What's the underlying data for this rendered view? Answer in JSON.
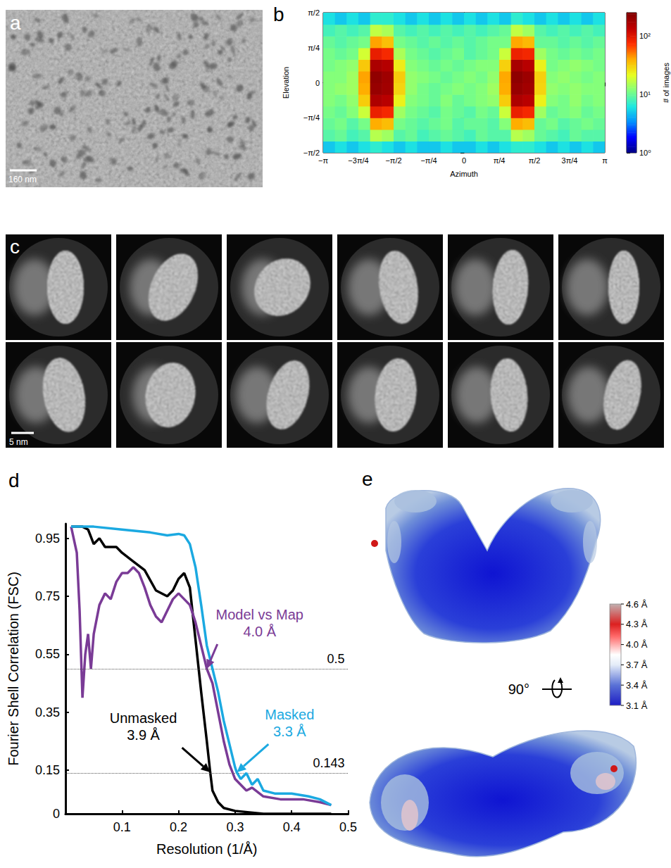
{
  "micrograph": {
    "panel_label": "a",
    "scale_bar": "160 nm"
  },
  "class_averages": {
    "panel_label": "c",
    "count": 12,
    "scale_bar": "5 nm"
  },
  "chart_data": [
    {
      "panel_label": "b",
      "type": "heatmap",
      "x_label": "Azimuth",
      "y_label": "Elevation",
      "xlim": [
        -3.14159,
        3.14159
      ],
      "xticks": [
        {
          "value": -3.14159,
          "label": "−π"
        },
        {
          "value": -2.35619,
          "label": "−3π/4"
        },
        {
          "value": -1.5708,
          "label": "−π/2"
        },
        {
          "value": -0.7854,
          "label": "−π/4"
        },
        0,
        {
          "value": 0.7854,
          "label": "π/4"
        },
        {
          "value": 1.5708,
          "label": "π/2"
        },
        {
          "value": 2.35619,
          "label": "3π/4"
        },
        {
          "value": 3.14159,
          "label": "π"
        }
      ],
      "ylim": [
        -1.5708,
        1.5708
      ],
      "yticks": [
        {
          "value": -1.5708,
          "label": "−π/2"
        },
        {
          "value": -0.7854,
          "label": "−π/4"
        },
        0,
        {
          "value": 0.7854,
          "label": "π/4"
        },
        {
          "value": 1.5708,
          "label": "π/2"
        }
      ],
      "x_bins": [
        -3.14159,
        -2.87979,
        -2.61799,
        -2.35619,
        -2.0944,
        -1.8326,
        -1.5708,
        -1.309,
        -1.0472,
        -0.7854,
        -0.5236,
        -0.2618,
        0,
        0.2618,
        0.5236,
        0.7854,
        1.0472,
        1.309,
        1.5708,
        1.8326,
        2.0944,
        2.35619,
        2.61799,
        2.87979,
        3.14159
      ],
      "y_bins": [
        -1.5708,
        -1.309,
        -1.0472,
        -0.7854,
        -0.5236,
        -0.2618,
        0,
        0.2618,
        0.5236,
        0.7854,
        1.0472,
        1.309,
        1.5708
      ],
      "counts": [
        [
          5,
          6,
          5,
          6,
          7,
          6,
          5,
          6,
          5,
          5,
          6,
          5,
          5,
          6,
          5,
          6,
          7,
          7,
          6,
          5,
          6,
          5,
          6,
          5
        ],
        [
          9,
          10,
          8,
          9,
          16,
          14,
          9,
          10,
          8,
          9,
          10,
          9,
          8,
          10,
          9,
          9,
          16,
          14,
          10,
          9,
          8,
          10,
          9,
          9
        ],
        [
          10,
          11,
          9,
          11,
          40,
          36,
          11,
          10,
          9,
          10,
          11,
          9,
          10,
          10,
          9,
          12,
          40,
          36,
          10,
          11,
          9,
          10,
          11,
          10
        ],
        [
          11,
          10,
          12,
          18,
          90,
          81,
          14,
          11,
          10,
          9,
          11,
          10,
          9,
          11,
          10,
          18,
          90,
          81,
          14,
          10,
          11,
          12,
          10,
          11
        ],
        [
          12,
          11,
          13,
          32,
          160,
          144,
          24,
          12,
          11,
          10,
          12,
          10,
          11,
          12,
          13,
          32,
          160,
          144,
          24,
          12,
          11,
          13,
          11,
          12
        ],
        [
          12,
          13,
          14,
          40,
          200,
          180,
          30,
          13,
          11,
          10,
          11,
          12,
          11,
          12,
          14,
          40,
          200,
          180,
          30,
          13,
          12,
          13,
          12,
          12
        ],
        [
          12,
          12,
          14,
          42,
          210,
          185,
          32,
          13,
          12,
          11,
          10,
          11,
          12,
          11,
          13,
          41,
          215,
          190,
          31,
          12,
          13,
          12,
          11,
          12
        ],
        [
          11,
          12,
          13,
          33,
          165,
          150,
          25,
          12,
          11,
          10,
          11,
          10,
          11,
          12,
          12,
          31,
          170,
          146,
          24,
          11,
          12,
          13,
          12,
          11
        ],
        [
          11,
          10,
          11,
          19,
          92,
          80,
          15,
          11,
          10,
          9,
          10,
          11,
          9,
          10,
          11,
          18,
          88,
          82,
          14,
          11,
          10,
          11,
          10,
          11
        ],
        [
          10,
          9,
          10,
          11,
          42,
          35,
          11,
          10,
          9,
          10,
          9,
          10,
          9,
          10,
          11,
          11,
          41,
          37,
          10,
          10,
          9,
          10,
          9,
          10
        ],
        [
          8,
          9,
          8,
          9,
          17,
          15,
          9,
          8,
          9,
          8,
          9,
          8,
          9,
          8,
          9,
          10,
          17,
          14,
          9,
          8,
          9,
          8,
          9,
          8
        ],
        [
          6,
          5,
          6,
          5,
          7,
          7,
          6,
          5,
          6,
          5,
          6,
          5,
          6,
          5,
          6,
          5,
          7,
          6,
          5,
          6,
          5,
          6,
          5,
          6
        ]
      ],
      "colorbar": {
        "label": "# of images",
        "log": true,
        "range": [
          1,
          250
        ],
        "ticks": [
          {
            "value": 1,
            "label": "10⁰"
          },
          {
            "value": 10,
            "label": "10¹"
          },
          {
            "value": 100,
            "label": "10²"
          }
        ]
      }
    },
    {
      "panel_label": "d",
      "type": "line",
      "x_label": "Resolution (1/Å)",
      "y_label": "Fourier Shell Correlation (FSC)",
      "xlim": [
        0,
        0.5
      ],
      "xticks": [
        0.1,
        0.2,
        0.3,
        0.4,
        0.5
      ],
      "ylim": [
        0,
        1
      ],
      "yticks": [
        0,
        0.15,
        0.35,
        0.55,
        0.75,
        0.95
      ],
      "reference_lines": [
        {
          "value": 0.5,
          "label": "0.5"
        },
        {
          "value": 0.143,
          "label": "0.143"
        }
      ],
      "series": [
        {
          "name": "Unmasked",
          "color": "#000000",
          "resolution_label": "3.9 Å",
          "point": [
            0.256,
            0.143
          ],
          "x": [
            0.01,
            0.03,
            0.04,
            0.05,
            0.06,
            0.07,
            0.09,
            0.1,
            0.12,
            0.14,
            0.16,
            0.18,
            0.19,
            0.2,
            0.21,
            0.22,
            0.23,
            0.24,
            0.25,
            0.256,
            0.26,
            0.27,
            0.28,
            0.3,
            0.35,
            0.4,
            0.47
          ],
          "values": [
            0.99,
            0.99,
            0.98,
            0.93,
            0.95,
            0.92,
            0.92,
            0.9,
            0.87,
            0.84,
            0.77,
            0.75,
            0.77,
            0.81,
            0.83,
            0.78,
            0.6,
            0.42,
            0.25,
            0.143,
            0.08,
            0.04,
            0.02,
            0.01,
            0,
            0,
            0
          ]
        },
        {
          "name": "Model vs Map",
          "color": "#7a3b96",
          "resolution_label": "4.0 Å",
          "point": [
            0.25,
            0.5
          ],
          "x": [
            0.01,
            0.02,
            0.025,
            0.03,
            0.035,
            0.04,
            0.045,
            0.05,
            0.06,
            0.07,
            0.08,
            0.09,
            0.1,
            0.11,
            0.12,
            0.13,
            0.14,
            0.15,
            0.16,
            0.17,
            0.18,
            0.19,
            0.2,
            0.21,
            0.22,
            0.23,
            0.24,
            0.25,
            0.26,
            0.27,
            0.28,
            0.29,
            0.3,
            0.31,
            0.32,
            0.33,
            0.35,
            0.38,
            0.4,
            0.42,
            0.45,
            0.47
          ],
          "values": [
            0.99,
            0.9,
            0.7,
            0.4,
            0.55,
            0.62,
            0.5,
            0.62,
            0.72,
            0.76,
            0.74,
            0.8,
            0.83,
            0.83,
            0.85,
            0.83,
            0.78,
            0.72,
            0.68,
            0.66,
            0.7,
            0.74,
            0.76,
            0.74,
            0.72,
            0.66,
            0.58,
            0.5,
            0.45,
            0.35,
            0.25,
            0.17,
            0.12,
            0.1,
            0.08,
            0.09,
            0.06,
            0.05,
            0.05,
            0.05,
            0.04,
            0.03
          ]
        },
        {
          "name": "Masked",
          "color": "#1ba9e1",
          "resolution_label": "3.3 Å",
          "point": [
            0.303,
            0.143
          ],
          "x": [
            0.01,
            0.05,
            0.1,
            0.15,
            0.18,
            0.2,
            0.21,
            0.22,
            0.23,
            0.24,
            0.25,
            0.26,
            0.27,
            0.28,
            0.29,
            0.3,
            0.303,
            0.31,
            0.32,
            0.33,
            0.34,
            0.35,
            0.37,
            0.4,
            0.43,
            0.45,
            0.47
          ],
          "values": [
            0.99,
            0.99,
            0.98,
            0.97,
            0.96,
            0.965,
            0.96,
            0.93,
            0.85,
            0.72,
            0.58,
            0.5,
            0.42,
            0.32,
            0.24,
            0.16,
            0.143,
            0.12,
            0.14,
            0.1,
            0.12,
            0.08,
            0.07,
            0.07,
            0.06,
            0.05,
            0.03
          ]
        }
      ]
    }
  ],
  "map_3d": {
    "panel_label": "e",
    "rotation_label": "90°",
    "colorbar": {
      "range": [
        3.1,
        4.6
      ],
      "ticks": [
        {
          "value": 4.6,
          "label": "4.6 Å"
        },
        {
          "value": 4.3,
          "label": "4.3 Å"
        },
        {
          "value": 4.0,
          "label": "4.0 Å"
        },
        {
          "value": 3.7,
          "label": "3.7 Å"
        },
        {
          "value": 3.4,
          "label": "3.4 Å"
        },
        {
          "value": 3.1,
          "label": "3.1 Å"
        }
      ]
    }
  }
}
